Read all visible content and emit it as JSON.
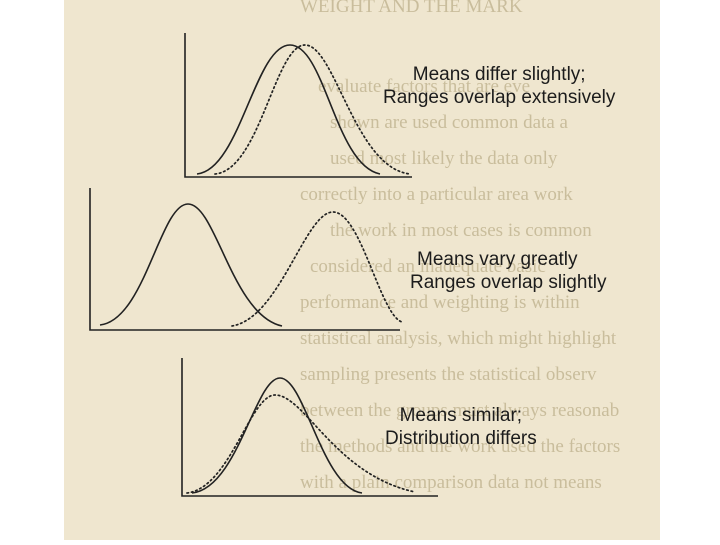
{
  "colors": {
    "page_background": "#ffffff",
    "paper": "#efe6cf",
    "ink": "#222222",
    "bleed_through": "#c9bd9c"
  },
  "panels": [
    {
      "caption_lines": [
        "Means differ slightly;",
        "Ranges overlap extensively"
      ],
      "curve_styles": [
        "solid",
        "dotted"
      ]
    },
    {
      "caption_lines": [
        "Means vary greatly",
        "Ranges overlap slightly"
      ],
      "curve_styles": [
        "solid",
        "dotted"
      ]
    },
    {
      "caption_lines": [
        "Means similar;",
        "Distribution differs"
      ],
      "curve_styles": [
        "solid",
        "dotted"
      ]
    }
  ]
}
